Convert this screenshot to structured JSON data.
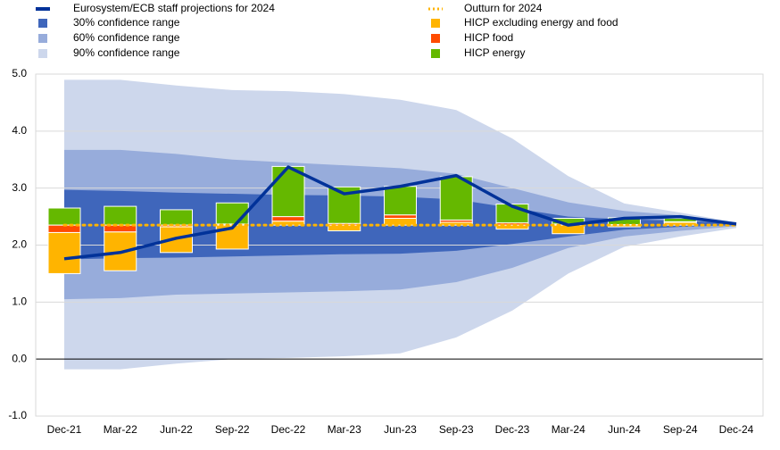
{
  "chart_data": {
    "type": "fan",
    "categories": [
      "Dec-21",
      "Mar-22",
      "Jun-22",
      "Sep-22",
      "Dec-22",
      "Mar-23",
      "Jun-23",
      "Sep-23",
      "Dec-23",
      "Mar-24",
      "Jun-24",
      "Sep-24",
      "Dec-24"
    ],
    "ylim": [
      -1.0,
      5.0
    ],
    "yticks": [
      {
        "value": 5.0,
        "label": "5.0"
      },
      {
        "value": 4.0,
        "label": "4.0"
      },
      {
        "value": 3.0,
        "label": "3.0"
      },
      {
        "value": 2.0,
        "label": "2.0"
      },
      {
        "value": 1.0,
        "label": "1.0"
      },
      {
        "value": 0.0,
        "label": "0.0"
      },
      {
        "value": -1.0,
        "label": "-1.0"
      }
    ],
    "grid": true,
    "series": [
      {
        "name": "Eurosystem/ECB staff projections for 2024",
        "color": "#003299",
        "values": [
          1.76,
          1.87,
          2.12,
          2.3,
          3.37,
          2.9,
          3.03,
          3.22,
          2.68,
          2.35,
          2.47,
          2.5,
          2.37
        ]
      }
    ],
    "bands": [
      {
        "name": "30% confidence range",
        "color": "#3f66bb",
        "lower": [
          1.75,
          1.77,
          1.78,
          1.8,
          1.82,
          1.84,
          1.85,
          1.9,
          2.02,
          2.15,
          2.27,
          2.32,
          2.35
        ],
        "upper": [
          2.97,
          2.95,
          2.92,
          2.9,
          2.88,
          2.87,
          2.85,
          2.8,
          2.65,
          2.5,
          2.45,
          2.43,
          2.38
        ]
      },
      {
        "name": "60% confidence range",
        "color": "#97acdb",
        "lower": [
          1.05,
          1.07,
          1.13,
          1.15,
          1.17,
          1.19,
          1.22,
          1.35,
          1.6,
          1.95,
          2.15,
          2.25,
          2.33
        ],
        "upper": [
          3.67,
          3.67,
          3.6,
          3.5,
          3.45,
          3.4,
          3.35,
          3.25,
          3.0,
          2.75,
          2.6,
          2.52,
          2.4
        ]
      },
      {
        "name": "90% confidence range",
        "color": "#cdd7ec",
        "lower": [
          -0.18,
          -0.18,
          -0.08,
          0.0,
          0.02,
          0.05,
          0.1,
          0.38,
          0.85,
          1.5,
          1.97,
          2.15,
          2.3
        ],
        "upper": [
          4.9,
          4.9,
          4.8,
          4.72,
          4.7,
          4.65,
          4.55,
          4.37,
          3.87,
          3.21,
          2.73,
          2.57,
          2.4
        ]
      }
    ],
    "reference": {
      "name": "Outturn for 2024",
      "color": "#ffb400",
      "value": 2.35
    },
    "bar_series": [
      {
        "name": "HICP excluding energy and food",
        "color": "#ffb400",
        "values": [
          -0.72,
          -0.68,
          -0.45,
          -0.42,
          0.07,
          -0.1,
          0.12,
          0.05,
          -0.07,
          -0.15,
          -0.03,
          0.05,
          null
        ]
      },
      {
        "name": "HICP food",
        "color": "#ff4b00",
        "values": [
          -0.13,
          -0.12,
          -0.03,
          0.02,
          0.08,
          0.03,
          0.06,
          0.04,
          0.04,
          0.02,
          0.01,
          0.01,
          null
        ]
      },
      {
        "name": "HICP energy",
        "color": "#65b800",
        "values": [
          0.3,
          0.33,
          0.27,
          0.37,
          0.88,
          0.64,
          0.5,
          0.76,
          0.33,
          0.1,
          0.12,
          0.06,
          null
        ]
      }
    ]
  }
}
